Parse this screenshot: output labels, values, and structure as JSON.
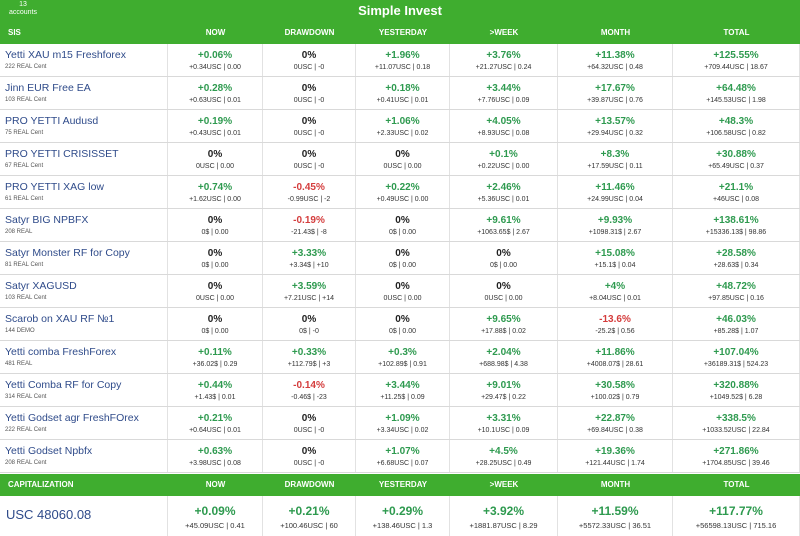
{
  "app": {
    "accounts_count": "13",
    "accounts_label": "accounts",
    "title": "Simple Invest"
  },
  "colors": {
    "accent": "#3fad2f",
    "positive": "#2e9a4f",
    "negative": "#d43c3c",
    "name": "#2f4b8a"
  },
  "table": {
    "headers": [
      "SIS",
      "NOW",
      "DRAWDOWN",
      "YESTERDAY",
      ">WEEK",
      "MONTH",
      "TOTAL"
    ],
    "rows": [
      {
        "name": "Yetti XAU m15 Freshforex",
        "sub": "222 REAL Cent",
        "cells": [
          {
            "pct": "+0.06%",
            "abs": "+0.34USC | 0.00",
            "sign": "pos"
          },
          {
            "pct": "0%",
            "abs": "0USC | -0",
            "sign": "zero"
          },
          {
            "pct": "+1.96%",
            "abs": "+11.07USC | 0.18",
            "sign": "pos"
          },
          {
            "pct": "+3.76%",
            "abs": "+21.27USC | 0.24",
            "sign": "pos"
          },
          {
            "pct": "+11.38%",
            "abs": "+64.32USC | 0.48",
            "sign": "pos"
          },
          {
            "pct": "+125.55%",
            "abs": "+709.44USC | 18.67",
            "sign": "pos"
          }
        ]
      },
      {
        "name": "Jinn EUR Free EA",
        "sub": "103 REAL Cent",
        "cells": [
          {
            "pct": "+0.28%",
            "abs": "+0.63USC | 0.01",
            "sign": "pos"
          },
          {
            "pct": "0%",
            "abs": "0USC | -0",
            "sign": "zero"
          },
          {
            "pct": "+0.18%",
            "abs": "+0.41USC | 0.01",
            "sign": "pos"
          },
          {
            "pct": "+3.44%",
            "abs": "+7.76USC | 0.09",
            "sign": "pos"
          },
          {
            "pct": "+17.67%",
            "abs": "+39.87USC | 0.76",
            "sign": "pos"
          },
          {
            "pct": "+64.48%",
            "abs": "+145.53USC | 1.98",
            "sign": "pos"
          }
        ]
      },
      {
        "name": "PRO YETTI Audusd",
        "sub": "75 REAL Cent",
        "cells": [
          {
            "pct": "+0.19%",
            "abs": "+0.43USC | 0.01",
            "sign": "pos"
          },
          {
            "pct": "0%",
            "abs": "0USC | -0",
            "sign": "zero"
          },
          {
            "pct": "+1.06%",
            "abs": "+2.33USC | 0.02",
            "sign": "pos"
          },
          {
            "pct": "+4.05%",
            "abs": "+8.93USC | 0.08",
            "sign": "pos"
          },
          {
            "pct": "+13.57%",
            "abs": "+29.94USC | 0.32",
            "sign": "pos"
          },
          {
            "pct": "+48.3%",
            "abs": "+106.58USC | 0.82",
            "sign": "pos"
          }
        ]
      },
      {
        "name": "PRO YETTI CRISISSET",
        "sub": "67 REAL Cent",
        "cells": [
          {
            "pct": "0%",
            "abs": "0USC | 0.00",
            "sign": "zero"
          },
          {
            "pct": "0%",
            "abs": "0USC | -0",
            "sign": "zero"
          },
          {
            "pct": "0%",
            "abs": "0USC | 0.00",
            "sign": "zero"
          },
          {
            "pct": "+0.1%",
            "abs": "+0.22USC | 0.00",
            "sign": "pos"
          },
          {
            "pct": "+8.3%",
            "abs": "+17.59USC | 0.11",
            "sign": "pos"
          },
          {
            "pct": "+30.88%",
            "abs": "+65.49USC | 0.37",
            "sign": "pos"
          }
        ]
      },
      {
        "name": "PRO YETTI XAG low",
        "sub": "61 REAL Cent",
        "cells": [
          {
            "pct": "+0.74%",
            "abs": "+1.62USC | 0.00",
            "sign": "pos"
          },
          {
            "pct": "-0.45%",
            "abs": "-0.99USC | -2",
            "sign": "neg"
          },
          {
            "pct": "+0.22%",
            "abs": "+0.49USC | 0.00",
            "sign": "pos"
          },
          {
            "pct": "+2.46%",
            "abs": "+5.36USC | 0.01",
            "sign": "pos"
          },
          {
            "pct": "+11.46%",
            "abs": "+24.99USC | 0.04",
            "sign": "pos"
          },
          {
            "pct": "+21.1%",
            "abs": "+46USC | 0.08",
            "sign": "pos"
          }
        ]
      },
      {
        "name": "Satyr BIG NPBFX",
        "sub": "208 REAL",
        "cells": [
          {
            "pct": "0%",
            "abs": "0$ | 0.00",
            "sign": "zero"
          },
          {
            "pct": "-0.19%",
            "abs": "-21.43$ | -8",
            "sign": "neg"
          },
          {
            "pct": "0%",
            "abs": "0$ | 0.00",
            "sign": "zero"
          },
          {
            "pct": "+9.61%",
            "abs": "+1063.65$ | 2.67",
            "sign": "pos"
          },
          {
            "pct": "+9.93%",
            "abs": "+1098.31$ | 2.67",
            "sign": "pos"
          },
          {
            "pct": "+138.61%",
            "abs": "+15336.13$ | 98.86",
            "sign": "pos"
          }
        ]
      },
      {
        "name": "Satyr Monster RF for Copy",
        "sub": "81 REAL Cent",
        "cells": [
          {
            "pct": "0%",
            "abs": "0$ | 0.00",
            "sign": "zero"
          },
          {
            "pct": "+3.33%",
            "abs": "+3.34$ | +10",
            "sign": "pos"
          },
          {
            "pct": "0%",
            "abs": "0$ | 0.00",
            "sign": "zero"
          },
          {
            "pct": "0%",
            "abs": "0$ | 0.00",
            "sign": "zero"
          },
          {
            "pct": "+15.08%",
            "abs": "+15.1$ | 0.04",
            "sign": "pos"
          },
          {
            "pct": "+28.58%",
            "abs": "+28.63$ | 0.34",
            "sign": "pos"
          }
        ]
      },
      {
        "name": "Satyr XAGUSD",
        "sub": "103 REAL Cent",
        "cells": [
          {
            "pct": "0%",
            "abs": "0USC | 0.00",
            "sign": "zero"
          },
          {
            "pct": "+3.59%",
            "abs": "+7.21USC | +14",
            "sign": "pos"
          },
          {
            "pct": "0%",
            "abs": "0USC | 0.00",
            "sign": "zero"
          },
          {
            "pct": "0%",
            "abs": "0USC | 0.00",
            "sign": "zero"
          },
          {
            "pct": "+4%",
            "abs": "+8.04USC | 0.01",
            "sign": "pos"
          },
          {
            "pct": "+48.72%",
            "abs": "+97.85USC | 0.16",
            "sign": "pos"
          }
        ]
      },
      {
        "name": "Scarob on XAU RF №1",
        "sub": "144 DEMO",
        "cells": [
          {
            "pct": "0%",
            "abs": "0$ | 0.00",
            "sign": "zero"
          },
          {
            "pct": "0%",
            "abs": "0$ | -0",
            "sign": "zero"
          },
          {
            "pct": "0%",
            "abs": "0$ | 0.00",
            "sign": "zero"
          },
          {
            "pct": "+9.65%",
            "abs": "+17.88$ | 0.02",
            "sign": "pos"
          },
          {
            "pct": "-13.6%",
            "abs": "-25.2$ | 0.56",
            "sign": "neg"
          },
          {
            "pct": "+46.03%",
            "abs": "+85.28$ | 1.07",
            "sign": "pos"
          }
        ]
      },
      {
        "name": "Yetti comba FreshForex",
        "sub": "481 REAL",
        "cells": [
          {
            "pct": "+0.11%",
            "abs": "+36.02$ | 0.29",
            "sign": "pos"
          },
          {
            "pct": "+0.33%",
            "abs": "+112.79$ | +3",
            "sign": "pos"
          },
          {
            "pct": "+0.3%",
            "abs": "+102.89$ | 0.91",
            "sign": "pos"
          },
          {
            "pct": "+2.04%",
            "abs": "+688.98$ | 4.38",
            "sign": "pos"
          },
          {
            "pct": "+11.86%",
            "abs": "+4008.07$ | 28.61",
            "sign": "pos"
          },
          {
            "pct": "+107.04%",
            "abs": "+36189.31$ | 524.23",
            "sign": "pos"
          }
        ]
      },
      {
        "name": "Yetti Comba RF for Copy",
        "sub": "314 REAL Cent",
        "cells": [
          {
            "pct": "+0.44%",
            "abs": "+1.43$ | 0.01",
            "sign": "pos"
          },
          {
            "pct": "-0.14%",
            "abs": "-0.46$ | -23",
            "sign": "neg"
          },
          {
            "pct": "+3.44%",
            "abs": "+11.25$ | 0.09",
            "sign": "pos"
          },
          {
            "pct": "+9.01%",
            "abs": "+29.47$ | 0.22",
            "sign": "pos"
          },
          {
            "pct": "+30.58%",
            "abs": "+100.02$ | 0.79",
            "sign": "pos"
          },
          {
            "pct": "+320.88%",
            "abs": "+1049.52$ | 6.28",
            "sign": "pos"
          }
        ]
      },
      {
        "name": "Yetti Godset agr FreshFOrex",
        "sub": "222 REAL Cent",
        "cells": [
          {
            "pct": "+0.21%",
            "abs": "+0.64USC | 0.01",
            "sign": "pos"
          },
          {
            "pct": "0%",
            "abs": "0USC | -0",
            "sign": "zero"
          },
          {
            "pct": "+1.09%",
            "abs": "+3.34USC | 0.02",
            "sign": "pos"
          },
          {
            "pct": "+3.31%",
            "abs": "+10.1USC | 0.09",
            "sign": "pos"
          },
          {
            "pct": "+22.87%",
            "abs": "+69.84USC | 0.38",
            "sign": "pos"
          },
          {
            "pct": "+338.5%",
            "abs": "+1033.52USC | 22.84",
            "sign": "pos"
          }
        ]
      },
      {
        "name": "Yetti Godset Npbfx",
        "sub": "208 REAL Cent",
        "cells": [
          {
            "pct": "+0.63%",
            "abs": "+3.98USC | 0.08",
            "sign": "pos"
          },
          {
            "pct": "0%",
            "abs": "0USC | -0",
            "sign": "zero"
          },
          {
            "pct": "+1.07%",
            "abs": "+6.68USC | 0.07",
            "sign": "pos"
          },
          {
            "pct": "+4.5%",
            "abs": "+28.25USC | 0.49",
            "sign": "pos"
          },
          {
            "pct": "+19.36%",
            "abs": "+121.44USC | 1.74",
            "sign": "pos"
          },
          {
            "pct": "+271.86%",
            "abs": "+1704.85USC | 39.46",
            "sign": "pos"
          }
        ]
      }
    ]
  },
  "capitalization": {
    "headers": [
      "CAPITALIZATION",
      "NOW",
      "DRAWDOWN",
      "YESTERDAY",
      ">WEEK",
      "MONTH",
      "TOTAL"
    ],
    "value": "USC 48060.08",
    "cells": [
      {
        "pct": "+0.09%",
        "abs": "+45.09USC | 0.41",
        "sign": "pos"
      },
      {
        "pct": "+0.21%",
        "abs": "+100.46USC | 60",
        "sign": "pos"
      },
      {
        "pct": "+0.29%",
        "abs": "+138.46USC | 1.3",
        "sign": "pos"
      },
      {
        "pct": "+3.92%",
        "abs": "+1881.87USC | 8.29",
        "sign": "pos"
      },
      {
        "pct": "+11.59%",
        "abs": "+5572.33USC | 36.51",
        "sign": "pos"
      },
      {
        "pct": "+117.77%",
        "abs": "+56598.13USC | 715.16",
        "sign": "pos"
      }
    ]
  }
}
